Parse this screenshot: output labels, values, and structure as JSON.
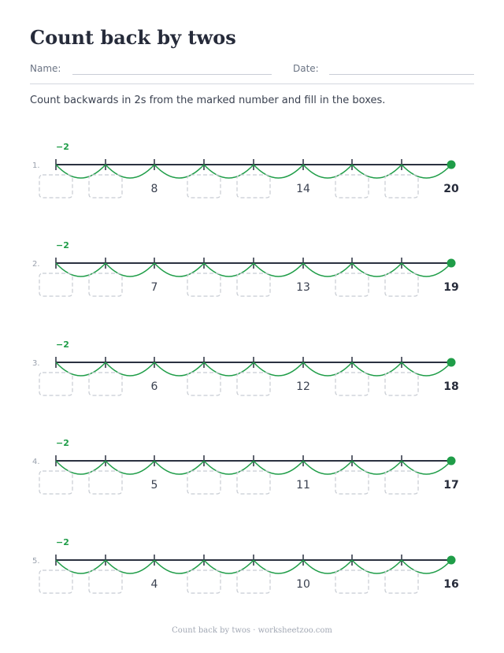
{
  "title": "Count back by twos",
  "name_label": "Name:",
  "date_label": "Date:",
  "instructions": "Count backwards in 2s from the marked number and fill in the boxes.",
  "step_label": "−2",
  "colors": {
    "accent": "#1f9d48",
    "line": "#2b3140",
    "box": "#c8ccd3",
    "muted": "#9aa1ad"
  },
  "problems": [
    {
      "number": "1.",
      "start": 20,
      "given": [
        8,
        14
      ]
    },
    {
      "number": "2.",
      "start": 19,
      "given": [
        7,
        13
      ]
    },
    {
      "number": "3.",
      "start": 18,
      "given": [
        6,
        12
      ]
    },
    {
      "number": "4.",
      "start": 17,
      "given": [
        5,
        11
      ]
    },
    {
      "number": "5.",
      "start": 16,
      "given": [
        4,
        10
      ]
    }
  ],
  "footer": "Count back by twos · worksheetzoo.com"
}
